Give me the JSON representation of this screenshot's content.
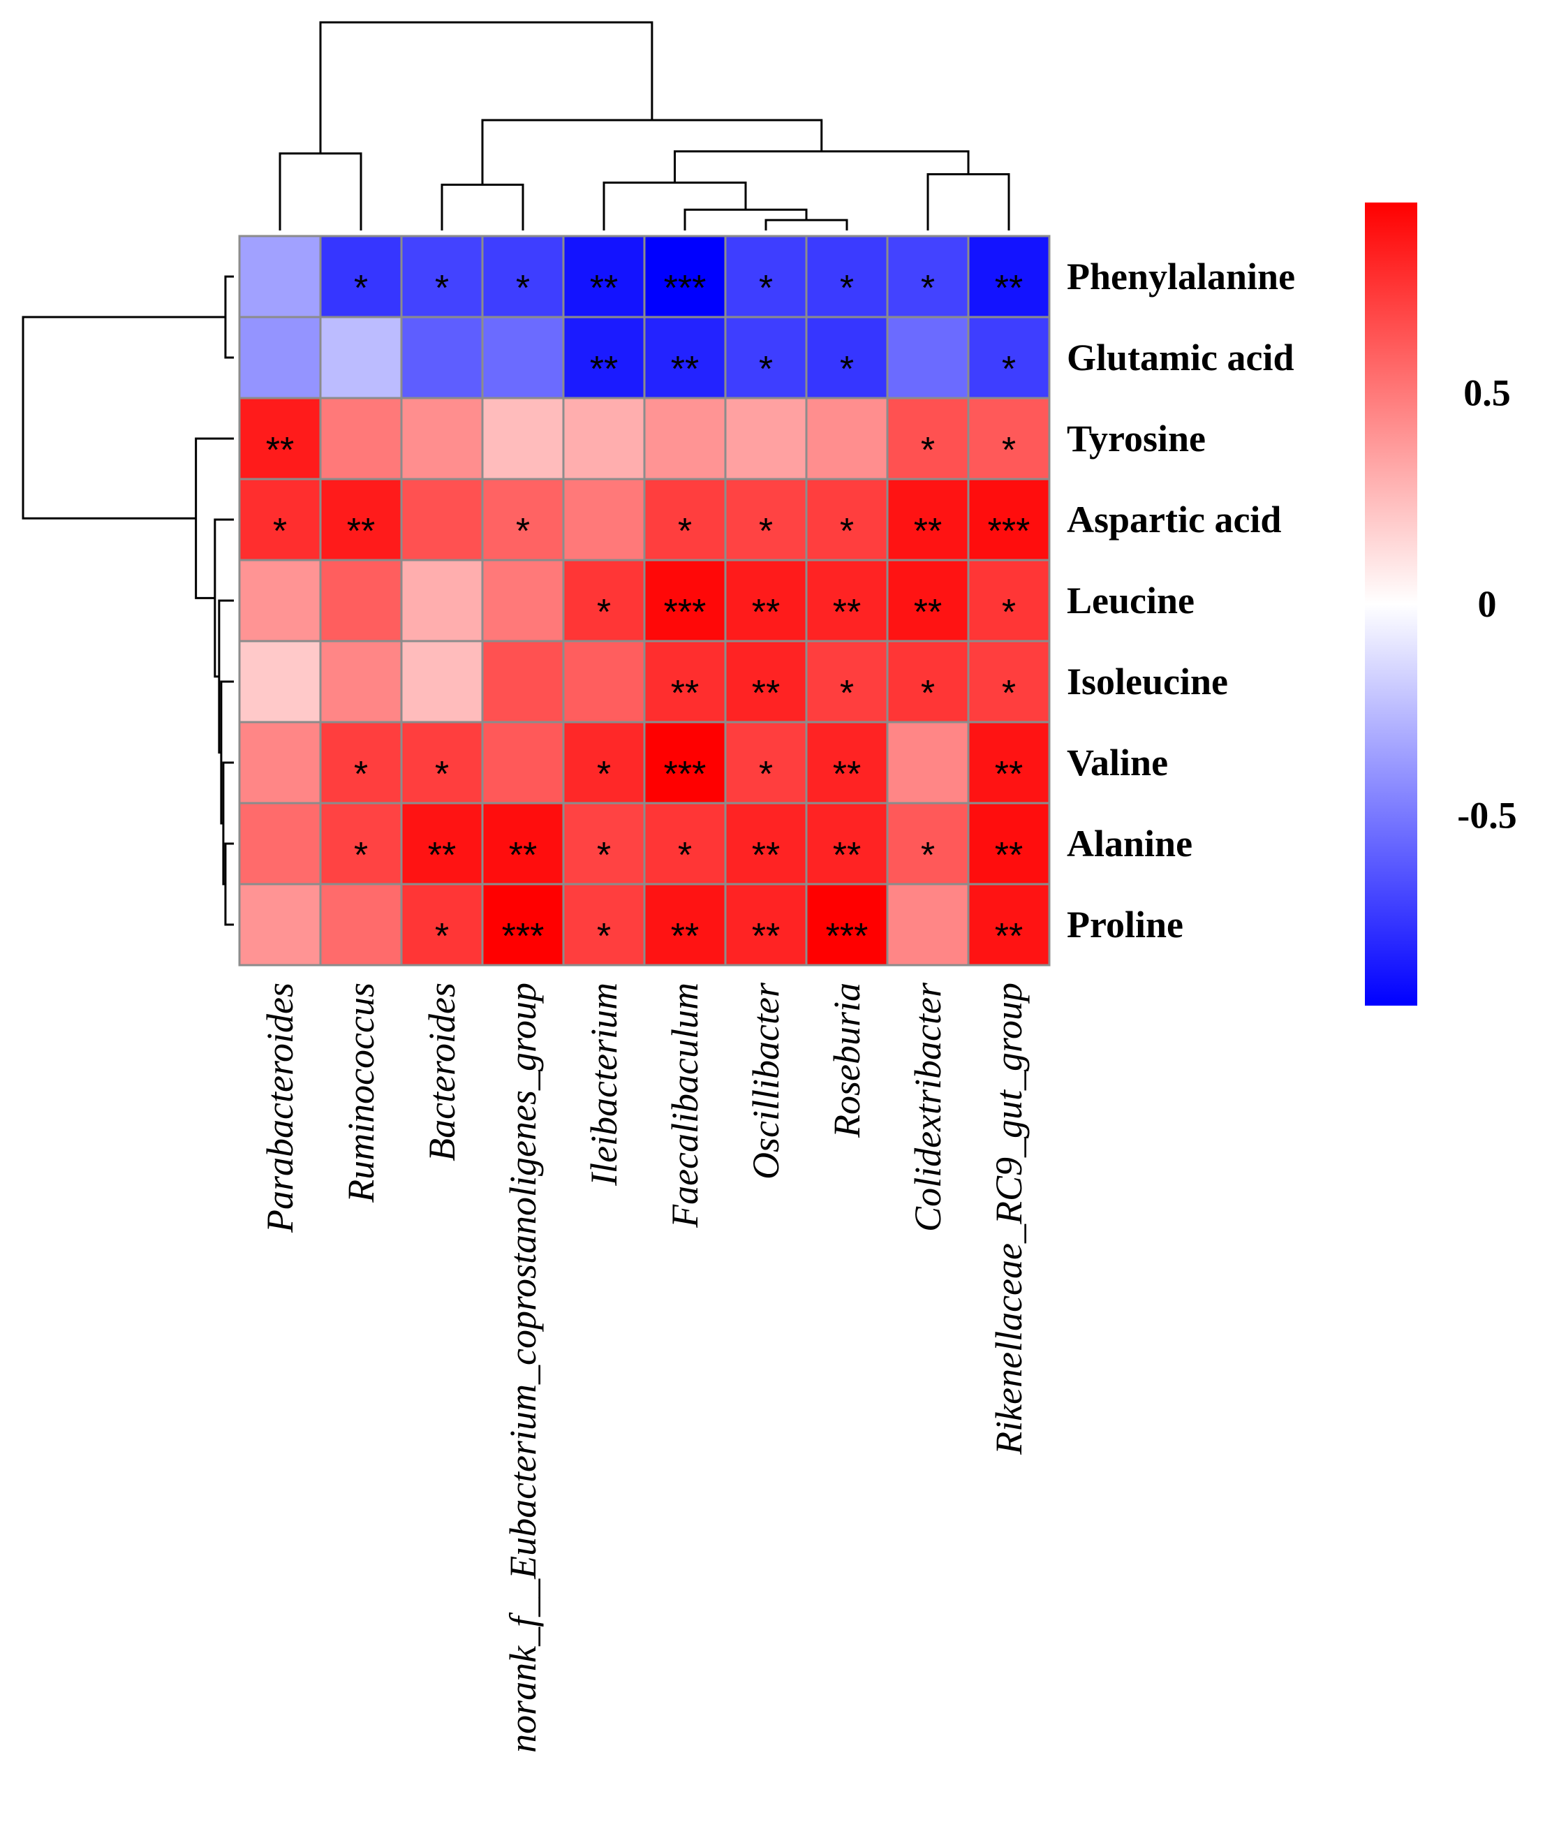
{
  "chart_data": {
    "type": "heatmap",
    "title": "",
    "columns": [
      "Parabacteroides",
      "Ruminococcus",
      "Bacteroides",
      "norank_f__Eubacterium_coprostanoligenes_group",
      "Ileibacterium",
      "Faecalibaculum",
      "Oscillibacter",
      "Roseburia",
      "Colidextribacter",
      "Rikenellaceae_RC9_gut_group"
    ],
    "rows": [
      "Phenylalanine",
      "Glutamic acid",
      "Tyrosine",
      "Aspartic acid",
      "Leucine",
      "Isoleucine",
      "Valine",
      "Alanine",
      "Proline"
    ],
    "values": [
      [
        -0.35,
        -0.75,
        -0.7,
        -0.72,
        -0.88,
        -0.95,
        -0.72,
        -0.73,
        -0.7,
        -0.88
      ],
      [
        -0.4,
        -0.25,
        -0.6,
        -0.55,
        -0.85,
        -0.82,
        -0.72,
        -0.75,
        -0.55,
        -0.72
      ],
      [
        0.85,
        0.5,
        0.42,
        0.25,
        0.3,
        0.4,
        0.35,
        0.42,
        0.65,
        0.62
      ],
      [
        0.78,
        0.85,
        0.65,
        0.58,
        0.5,
        0.72,
        0.7,
        0.72,
        0.88,
        0.9
      ],
      [
        0.4,
        0.6,
        0.3,
        0.5,
        0.75,
        0.92,
        0.85,
        0.82,
        0.88,
        0.75
      ],
      [
        0.2,
        0.45,
        0.25,
        0.65,
        0.6,
        0.78,
        0.82,
        0.72,
        0.75,
        0.72
      ],
      [
        0.45,
        0.72,
        0.72,
        0.62,
        0.8,
        0.95,
        0.72,
        0.82,
        0.45,
        0.88
      ],
      [
        0.55,
        0.7,
        0.88,
        0.9,
        0.7,
        0.75,
        0.82,
        0.82,
        0.62,
        0.9
      ],
      [
        0.4,
        0.55,
        0.75,
        0.95,
        0.72,
        0.88,
        0.82,
        0.95,
        0.45,
        0.88
      ]
    ],
    "significance": [
      [
        "",
        "*",
        "*",
        "*",
        "**",
        "***",
        "*",
        "*",
        "*",
        "**"
      ],
      [
        "",
        "",
        "",
        "",
        "**",
        "**",
        "*",
        "*",
        "",
        "*"
      ],
      [
        "**",
        "",
        "",
        "",
        "",
        "",
        "",
        "",
        "*",
        "*"
      ],
      [
        "*",
        "**",
        "",
        "*",
        "",
        "*",
        "*",
        "*",
        "**",
        "***"
      ],
      [
        "",
        "",
        "",
        "",
        "*",
        "***",
        "**",
        "**",
        "**",
        "*"
      ],
      [
        "",
        "",
        "",
        "",
        "",
        "**",
        "**",
        "*",
        "*",
        "*"
      ],
      [
        "",
        "*",
        "*",
        "",
        "*",
        "***",
        "*",
        "**",
        "",
        "**"
      ],
      [
        "",
        "*",
        "**",
        "**",
        "*",
        "*",
        "**",
        "**",
        "*",
        "**"
      ],
      [
        "",
        "",
        "*",
        "***",
        "*",
        "**",
        "**",
        "***",
        "",
        "**"
      ]
    ],
    "colorbar": {
      "ticks": [
        0.5,
        0,
        -0.5
      ],
      "tick_labels": [
        "0.5",
        "0",
        "-0.5"
      ],
      "range": [
        -0.95,
        0.95
      ],
      "low_color": "#0000ff",
      "mid_color": "#ffffff",
      "high_color": "#ff0000"
    },
    "col_dendrogram": [
      {
        "a": 6,
        "b": 7,
        "h": 0.05
      },
      {
        "a": 5,
        "b": "m0",
        "h": 0.1
      },
      {
        "a": 4,
        "b": "m1",
        "h": 0.23
      },
      {
        "a": 8,
        "b": 9,
        "h": 0.27
      },
      {
        "a": "m2",
        "b": "m3",
        "h": 0.38
      },
      {
        "a": 2,
        "b": 3,
        "h": 0.22
      },
      {
        "a": "m5",
        "b": "m4",
        "h": 0.53
      },
      {
        "a": 0,
        "b": 1,
        "h": 0.37
      },
      {
        "a": "m7",
        "b": "m6",
        "h": 1.0
      }
    ],
    "row_dendrogram": [
      {
        "a": 0,
        "b": 1,
        "h": 0.04
      },
      {
        "a": 7,
        "b": 8,
        "h": 0.04
      },
      {
        "a": 6,
        "b": "m1",
        "h": 0.05
      },
      {
        "a": 5,
        "b": "m2",
        "h": 0.06
      },
      {
        "a": 4,
        "b": "m3",
        "h": 0.07
      },
      {
        "a": 3,
        "b": "m4",
        "h": 0.09
      },
      {
        "a": 2,
        "b": "m5",
        "h": 0.18
      },
      {
        "a": "m0",
        "b": "m6",
        "h": 1.0
      }
    ]
  }
}
